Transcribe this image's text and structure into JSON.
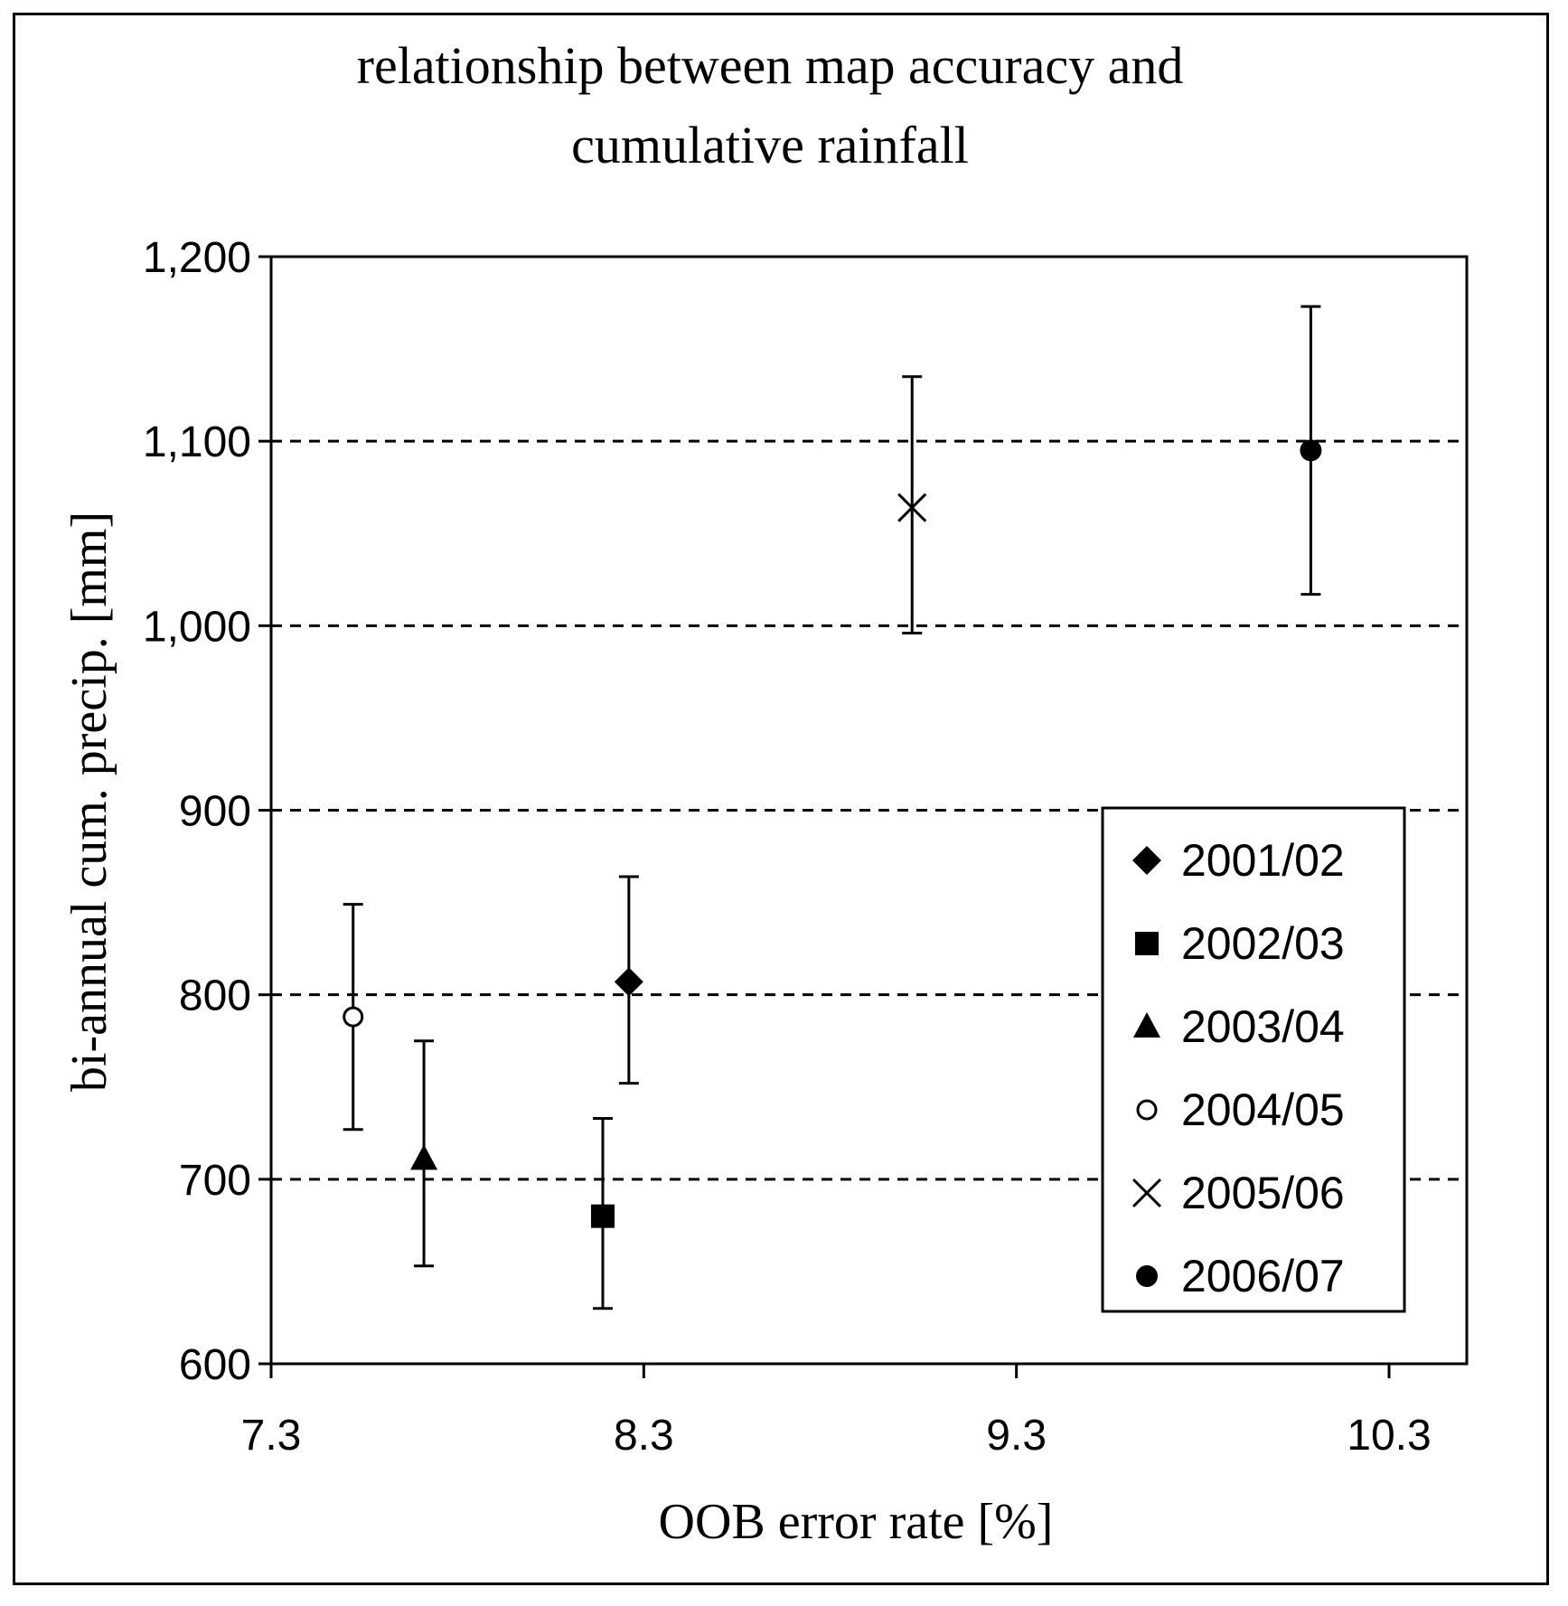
{
  "chart_data": {
    "type": "scatter",
    "title_line1": "relationship between map accuracy and",
    "title_line2": "cumulative rainfall",
    "xlabel": "OOB error rate [%]",
    "ylabel": "bi-annual cum. precip. [mm]",
    "xlim": [
      7.3,
      10.3
    ],
    "ylim": [
      600,
      1200
    ],
    "x_ticks": [
      7.3,
      8.3,
      9.3,
      10.3
    ],
    "x_tick_labels": [
      "7.3",
      "8.3",
      "9.3",
      "10.3"
    ],
    "y_ticks": [
      600,
      700,
      800,
      900,
      1000,
      1100,
      1200
    ],
    "y_tick_labels": [
      "600",
      "700",
      "800",
      "900",
      "1,000",
      "1,100",
      "1,200"
    ],
    "grid": "horizontal dashed",
    "legend_position": "bottom-right",
    "series": [
      {
        "name": "2001/02",
        "marker": "diamond",
        "x": 8.26,
        "y": 807,
        "err_low": 752,
        "err_high": 864
      },
      {
        "name": "2002/03",
        "marker": "square",
        "x": 8.19,
        "y": 680,
        "err_low": 630,
        "err_high": 733
      },
      {
        "name": "2003/04",
        "marker": "triangle",
        "x": 7.71,
        "y": 711,
        "err_low": 653,
        "err_high": 775
      },
      {
        "name": "2004/05",
        "marker": "open-circle",
        "x": 7.52,
        "y": 788,
        "err_low": 727,
        "err_high": 849
      },
      {
        "name": "2005/06",
        "marker": "asterisk",
        "x": 9.02,
        "y": 1064,
        "err_low": 996,
        "err_high": 1135
      },
      {
        "name": "2006/07",
        "marker": "filled-circle",
        "x": 10.09,
        "y": 1095,
        "err_low": 1017,
        "err_high": 1173
      }
    ]
  }
}
